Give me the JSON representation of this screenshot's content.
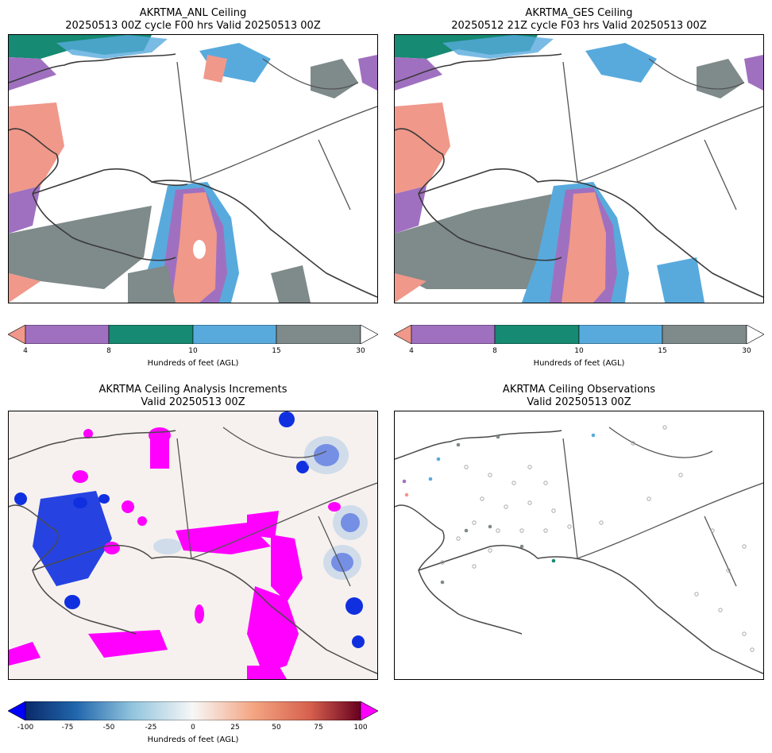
{
  "panels": [
    {
      "title1": "AKRTMA_ANL Ceiling",
      "title2": "20250513 00Z cycle F00 hrs Valid 20250513 00Z"
    },
    {
      "title1": "AKRTMA_GES Ceiling",
      "title2": "20250512 21Z cycle F03 hrs Valid 20250513 00Z"
    },
    {
      "title1": "AKRTMA Ceiling Analysis Increments",
      "title2": "Valid 20250513 00Z"
    },
    {
      "title1": "AKRTMA Ceiling Observations",
      "title2": "Valid 20250513 00Z"
    }
  ],
  "chart_data": [
    {
      "type": "heatmap",
      "title": "AKRTMA_ANL Ceiling",
      "colorbar_label": "Hundreds of feet (AGL)",
      "colorbar_ticks": [
        "4",
        "8",
        "10",
        "15",
        "30"
      ],
      "bins": [
        {
          "range": "<4",
          "color": "#f0988a"
        },
        {
          "range": "4-8",
          "color": "#a070c0"
        },
        {
          "range": "8-10",
          "color": "#168a72"
        },
        {
          "range": "10-15",
          "color": "#58aadd"
        },
        {
          "range": "15-30",
          "color": "#7f8a8a"
        },
        {
          "range": ">30",
          "color": "#ffffff"
        }
      ]
    },
    {
      "type": "heatmap",
      "title": "AKRTMA_GES Ceiling",
      "colorbar_label": "Hundreds of feet (AGL)",
      "colorbar_ticks": [
        "4",
        "8",
        "10",
        "15",
        "30"
      ]
    },
    {
      "type": "heatmap",
      "title": "AKRTMA Ceiling Analysis Increments",
      "colorbar_label": "Hundreds of feet (AGL)",
      "colorbar_ticks": [
        "-100",
        "-75",
        "-50",
        "-25",
        "0",
        "25",
        "50",
        "75",
        "100"
      ],
      "range": [
        -100,
        100
      ]
    },
    {
      "type": "scatter",
      "title": "AKRTMA Ceiling Observations",
      "colorbar_label": "Hundreds of feet (AGL)",
      "colorbar_ticks": [
        "4",
        "8",
        "10",
        "15",
        "30"
      ]
    }
  ]
}
